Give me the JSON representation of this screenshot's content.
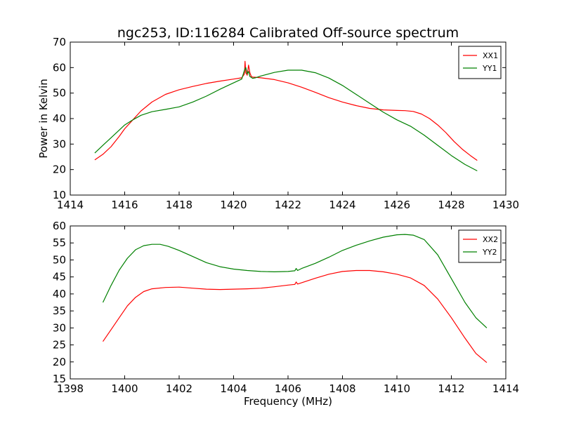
{
  "chart_data": [
    {
      "type": "line",
      "title": "ngc253, ID:116284 Calibrated Off-source spectrum",
      "xlabel": "",
      "ylabel": "Power in Kelvin",
      "xlim": [
        1414,
        1430
      ],
      "ylim": [
        10,
        70
      ],
      "xticks": [
        1414,
        1416,
        1418,
        1420,
        1422,
        1424,
        1426,
        1428,
        1430
      ],
      "yticks": [
        10,
        20,
        30,
        40,
        50,
        60,
        70
      ],
      "grid": false,
      "legend": "top-right",
      "series": [
        {
          "name": "XX1",
          "color": "#ff0000",
          "x": [
            1414.9,
            1415.2,
            1415.5,
            1415.8,
            1416.0,
            1416.3,
            1416.6,
            1417.0,
            1417.5,
            1418.0,
            1418.5,
            1419.0,
            1419.5,
            1420.0,
            1420.3,
            1420.4,
            1420.42,
            1420.45,
            1420.5,
            1420.55,
            1420.6,
            1420.65,
            1420.7,
            1420.8,
            1421.0,
            1421.5,
            1422.0,
            1422.5,
            1423.0,
            1423.5,
            1424.0,
            1424.5,
            1425.0,
            1425.5,
            1426.0,
            1426.3,
            1426.6,
            1426.9,
            1427.2,
            1427.5,
            1427.8,
            1428.1,
            1428.4,
            1428.7,
            1428.95
          ],
          "y": [
            23.8,
            26.0,
            29.0,
            33.0,
            36.0,
            39.5,
            43.0,
            46.5,
            49.5,
            51.3,
            52.6,
            53.8,
            54.7,
            55.5,
            56.0,
            57.5,
            62.5,
            58.0,
            57.0,
            61.0,
            58.0,
            56.5,
            56.3,
            56.2,
            56.0,
            55.3,
            54.0,
            52.3,
            50.3,
            48.2,
            46.5,
            45.1,
            44.0,
            43.4,
            43.2,
            43.1,
            42.8,
            41.8,
            40.0,
            37.5,
            34.5,
            31.0,
            28.0,
            25.5,
            23.6
          ]
        },
        {
          "name": "YY1",
          "color": "#008000",
          "x": [
            1414.9,
            1415.2,
            1415.5,
            1415.8,
            1416.0,
            1416.3,
            1416.6,
            1417.0,
            1417.5,
            1418.0,
            1418.5,
            1419.0,
            1419.5,
            1420.0,
            1420.3,
            1420.4,
            1420.45,
            1420.5,
            1420.55,
            1420.6,
            1420.7,
            1420.8,
            1421.0,
            1421.5,
            1422.0,
            1422.5,
            1423.0,
            1423.5,
            1424.0,
            1424.5,
            1425.0,
            1425.5,
            1426.0,
            1426.5,
            1427.0,
            1427.5,
            1428.0,
            1428.5,
            1428.95
          ],
          "y": [
            26.5,
            29.5,
            32.5,
            35.5,
            37.5,
            39.5,
            41.3,
            42.7,
            43.6,
            44.6,
            46.5,
            48.8,
            51.5,
            54.0,
            55.5,
            59.0,
            60.0,
            57.5,
            58.5,
            56.5,
            55.8,
            56.0,
            56.7,
            58.1,
            59.0,
            59.0,
            58.0,
            55.9,
            53.0,
            49.5,
            46.0,
            42.5,
            39.5,
            37.0,
            33.5,
            29.5,
            25.5,
            22.0,
            19.5
          ]
        }
      ]
    },
    {
      "type": "line",
      "title": "",
      "xlabel": "Frequency (MHz)",
      "ylabel": "",
      "xlim": [
        1398,
        1414
      ],
      "ylim": [
        15,
        60
      ],
      "xticks": [
        1398,
        1400,
        1402,
        1404,
        1406,
        1408,
        1410,
        1412,
        1414
      ],
      "yticks": [
        15,
        20,
        25,
        30,
        35,
        40,
        45,
        50,
        55,
        60
      ],
      "grid": false,
      "legend": "top-right",
      "series": [
        {
          "name": "XX2",
          "color": "#ff0000",
          "x": [
            1399.2,
            1399.5,
            1399.8,
            1400.1,
            1400.4,
            1400.7,
            1401.0,
            1401.5,
            1402.0,
            1402.5,
            1403.0,
            1403.5,
            1404.0,
            1404.5,
            1405.0,
            1405.5,
            1406.0,
            1406.25,
            1406.3,
            1406.35,
            1406.5,
            1407.0,
            1407.5,
            1408.0,
            1408.5,
            1409.0,
            1409.5,
            1410.0,
            1410.5,
            1411.0,
            1411.5,
            1412.0,
            1412.5,
            1412.9,
            1413.3
          ],
          "y": [
            26.0,
            29.5,
            33.0,
            36.5,
            39.0,
            40.7,
            41.5,
            41.9,
            42.0,
            41.7,
            41.4,
            41.3,
            41.4,
            41.5,
            41.7,
            42.1,
            42.6,
            42.8,
            43.5,
            42.9,
            43.3,
            44.6,
            45.8,
            46.6,
            46.9,
            46.9,
            46.5,
            45.8,
            44.7,
            42.5,
            38.5,
            33.0,
            27.0,
            22.5,
            19.8
          ]
        },
        {
          "name": "YY2",
          "color": "#008000",
          "x": [
            1399.2,
            1399.5,
            1399.8,
            1400.1,
            1400.4,
            1400.7,
            1401.0,
            1401.3,
            1401.6,
            1402.0,
            1402.5,
            1403.0,
            1403.5,
            1404.0,
            1404.5,
            1405.0,
            1405.5,
            1406.0,
            1406.25,
            1406.3,
            1406.35,
            1406.5,
            1407.0,
            1407.5,
            1408.0,
            1408.5,
            1409.0,
            1409.5,
            1410.0,
            1410.3,
            1410.6,
            1411.0,
            1411.5,
            1412.0,
            1412.5,
            1412.9,
            1413.3
          ],
          "y": [
            37.5,
            42.5,
            47.0,
            50.5,
            53.0,
            54.2,
            54.6,
            54.6,
            54.0,
            52.8,
            51.0,
            49.2,
            48.0,
            47.3,
            46.9,
            46.6,
            46.5,
            46.6,
            46.8,
            47.5,
            46.9,
            47.5,
            49.0,
            50.8,
            52.8,
            54.3,
            55.6,
            56.7,
            57.4,
            57.5,
            57.3,
            56.0,
            51.5,
            44.5,
            37.5,
            33.0,
            30.0
          ]
        }
      ]
    }
  ]
}
